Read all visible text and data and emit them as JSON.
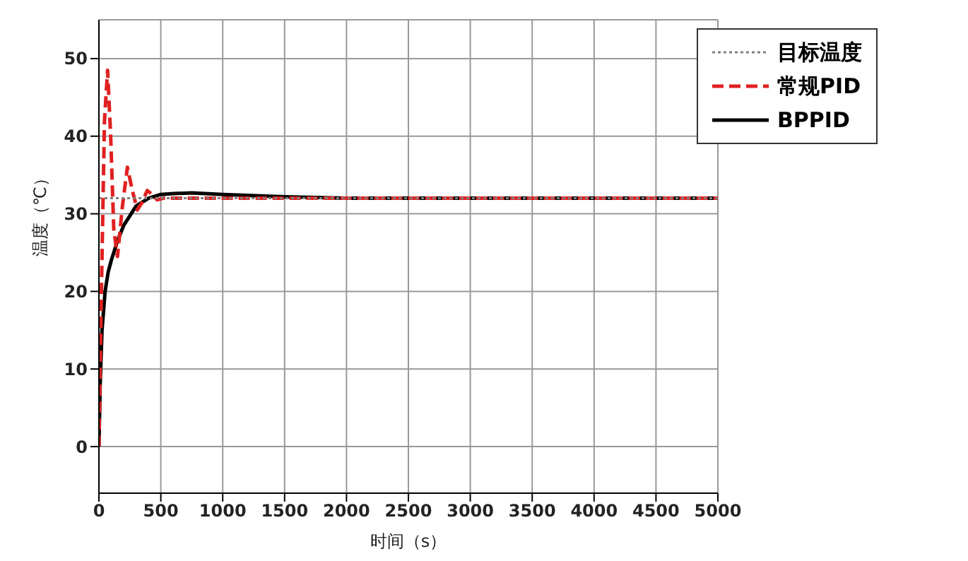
{
  "chart_data": {
    "type": "line",
    "xlabel": "时间（s）",
    "ylabel": "温度（℃）",
    "xlim": [
      0,
      5000
    ],
    "xticks": [
      0,
      500,
      1000,
      1500,
      2000,
      2500,
      3000,
      3500,
      4000,
      4500,
      5000
    ],
    "ylim": [
      -6,
      55
    ],
    "yticks": [
      0,
      10,
      20,
      30,
      40,
      50
    ],
    "grid": true,
    "legend": "top right",
    "marker": "none",
    "series": [
      {
        "name": "目标温度",
        "color": "#808080",
        "line_style": "dotted",
        "x": [
          0,
          5000
        ],
        "values": [
          32,
          32
        ]
      },
      {
        "name": "常规PID",
        "color": "#e02020",
        "line_style": "dashed",
        "x": [
          0,
          20,
          45,
          70,
          95,
          120,
          150,
          190,
          230,
          270,
          310,
          350,
          390,
          430,
          470,
          520,
          600,
          1000,
          2000,
          5000
        ],
        "values": [
          0,
          20,
          42,
          48.5,
          40,
          28,
          24.5,
          31,
          36,
          33,
          30.5,
          31.5,
          33,
          32.5,
          31.8,
          32,
          32,
          32,
          32,
          32
        ]
      },
      {
        "name": "BPPID",
        "color": "#000000",
        "line_style": "solid",
        "x": [
          0,
          10,
          25,
          50,
          75,
          100,
          150,
          200,
          300,
          400,
          500,
          600,
          750,
          1000,
          1500,
          2000,
          3000,
          5000
        ],
        "values": [
          0,
          8,
          15,
          20,
          22.5,
          24,
          26.5,
          28.5,
          31,
          32,
          32.5,
          32.6,
          32.7,
          32.5,
          32.2,
          32,
          32,
          32
        ]
      }
    ]
  }
}
